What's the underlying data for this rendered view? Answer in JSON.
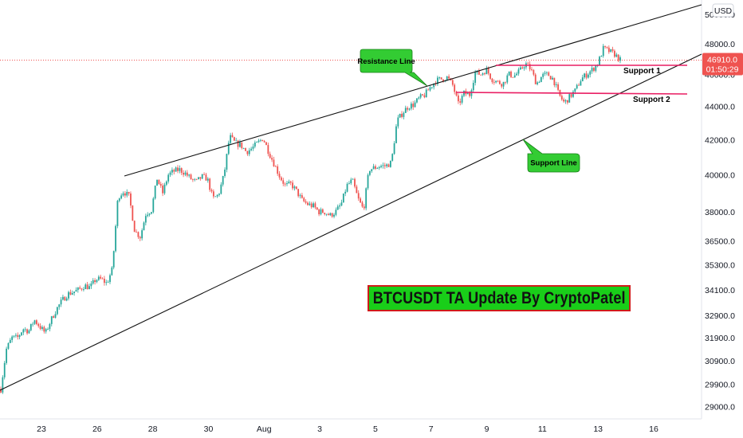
{
  "chart_data": {
    "type": "candlestick",
    "symbol": "BTCUSDT",
    "title": "BTCUSDT TA Update By CryptoPatel",
    "currency": "USD",
    "x_tick_labels": [
      "23",
      "26",
      "28",
      "30",
      "Aug",
      "3",
      "5",
      "7",
      "9",
      "11",
      "13",
      "16"
    ],
    "y_tick_labels": [
      "29000.0",
      "29900.0",
      "30900.0",
      "31900.0",
      "32900.0",
      "34100.0",
      "35300.0",
      "36500.0",
      "38000.0",
      "40000.0",
      "42000.0",
      "44000.0",
      "46000.0",
      "48000.0",
      "50000.0"
    ],
    "y_scale": "log",
    "y_range": [
      28500,
      51000
    ],
    "last_price": "46910.0",
    "countdown": "01:50:29",
    "colors": {
      "up": "#26a69a",
      "down": "#ef5350",
      "support": "#e91e63",
      "trendline": "#000000",
      "price_line": "#ef5350",
      "callout": "#33cc33"
    },
    "annotations": [
      {
        "label": "Resistance Line"
      },
      {
        "label": "Support Line"
      },
      {
        "label": "Support 1",
        "price": 46500
      },
      {
        "label": "Support 2",
        "price": 45000
      }
    ],
    "price_path": [
      [
        0,
        29700
      ],
      [
        1,
        31400
      ],
      [
        2,
        31900
      ],
      [
        3,
        31900
      ],
      [
        4,
        32300
      ],
      [
        5,
        32200
      ],
      [
        6,
        32700
      ],
      [
        7,
        32400
      ],
      [
        8,
        32100
      ],
      [
        9,
        32700
      ],
      [
        10,
        33200
      ],
      [
        11,
        33600
      ],
      [
        12,
        33900
      ],
      [
        13,
        34000
      ],
      [
        14,
        34100
      ],
      [
        15,
        34300
      ],
      [
        16,
        34200
      ],
      [
        17,
        34600
      ],
      [
        18,
        34600
      ],
      [
        19,
        34400
      ],
      [
        20,
        35100
      ],
      [
        21,
        38800
      ],
      [
        22,
        39100
      ],
      [
        23,
        38800
      ],
      [
        24,
        37000
      ],
      [
        25,
        36700
      ],
      [
        26,
        37900
      ],
      [
        27,
        38100
      ],
      [
        28,
        39800
      ],
      [
        29,
        39000
      ],
      [
        30,
        40000
      ],
      [
        31,
        40200
      ],
      [
        32,
        40300
      ],
      [
        33,
        40100
      ],
      [
        34,
        39800
      ],
      [
        35,
        39600
      ],
      [
        36,
        39900
      ],
      [
        37,
        39800
      ],
      [
        38,
        38700
      ],
      [
        39,
        38900
      ],
      [
        40,
        40000
      ],
      [
        41,
        42200
      ],
      [
        42,
        41800
      ],
      [
        43,
        41700
      ],
      [
        44,
        41300
      ],
      [
        45,
        41500
      ],
      [
        46,
        41800
      ],
      [
        47,
        42100
      ],
      [
        48,
        41300
      ],
      [
        49,
        40600
      ],
      [
        50,
        39900
      ],
      [
        51,
        39400
      ],
      [
        52,
        39500
      ],
      [
        53,
        39100
      ],
      [
        54,
        38600
      ],
      [
        55,
        38400
      ],
      [
        56,
        38300
      ],
      [
        57,
        38000
      ],
      [
        58,
        38000
      ],
      [
        59,
        37800
      ],
      [
        60,
        38000
      ],
      [
        61,
        38400
      ],
      [
        62,
        39400
      ],
      [
        63,
        39700
      ],
      [
        64,
        38700
      ],
      [
        65,
        38100
      ],
      [
        66,
        40300
      ],
      [
        67,
        40400
      ],
      [
        68,
        40500
      ],
      [
        69,
        40500
      ],
      [
        70,
        40700
      ],
      [
        71,
        43100
      ],
      [
        72,
        43600
      ],
      [
        73,
        44000
      ],
      [
        74,
        44100
      ],
      [
        75,
        44500
      ],
      [
        76,
        44700
      ],
      [
        77,
        45200
      ],
      [
        78,
        45600
      ],
      [
        79,
        45700
      ],
      [
        80,
        45800
      ],
      [
        81,
        45300
      ],
      [
        82,
        44100
      ],
      [
        83,
        44800
      ],
      [
        84,
        44700
      ],
      [
        85,
        46100
      ],
      [
        86,
        46000
      ],
      [
        87,
        46300
      ],
      [
        88,
        45700
      ],
      [
        89,
        45500
      ],
      [
        90,
        45400
      ],
      [
        91,
        46000
      ],
      [
        92,
        45900
      ],
      [
        93,
        46200
      ],
      [
        94,
        46700
      ],
      [
        95,
        46300
      ],
      [
        96,
        45400
      ],
      [
        97,
        45900
      ],
      [
        98,
        46000
      ],
      [
        99,
        45700
      ],
      [
        100,
        44700
      ],
      [
        101,
        44200
      ],
      [
        102,
        44600
      ],
      [
        103,
        45000
      ],
      [
        104,
        45700
      ],
      [
        105,
        46000
      ],
      [
        106,
        46300
      ],
      [
        107,
        46700
      ],
      [
        108,
        47700
      ],
      [
        109,
        47500
      ],
      [
        110,
        47300
      ],
      [
        111,
        46910
      ]
    ]
  }
}
